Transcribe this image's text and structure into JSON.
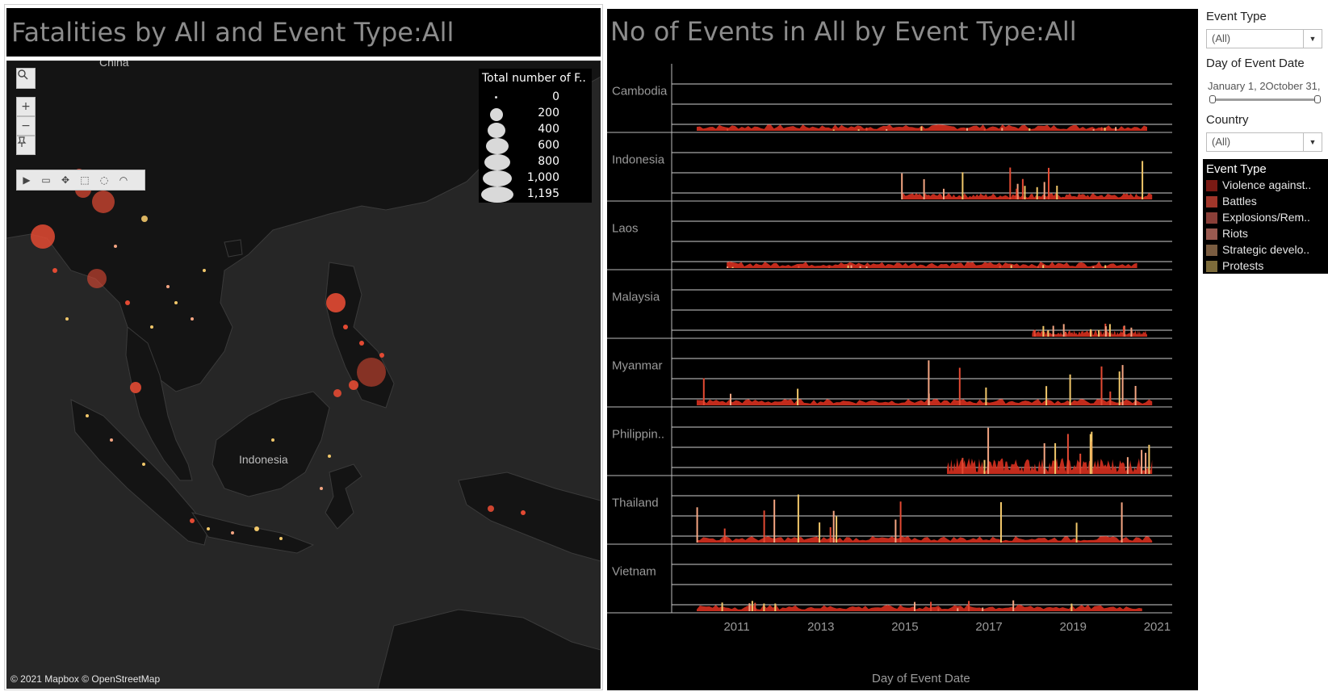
{
  "map_panel": {
    "title": "Fatalities by  All and Event Type:All",
    "labels": {
      "china": "China",
      "indonesia": "Indonesia"
    },
    "credit": "© 2021 Mapbox © OpenStreetMap",
    "legend": {
      "title": "Total number of F..",
      "items": [
        "0",
        "200",
        "400",
        "600",
        "800",
        "1,000",
        "1,195"
      ]
    },
    "tools": {
      "search": "search-icon",
      "zoom_in": "+",
      "zoom_out": "−",
      "pin": "pin-icon"
    }
  },
  "chart_panel": {
    "title": "No of Events in All by Event Type:All",
    "xlabel": "Day of Event Date",
    "x_ticks": [
      "2011",
      "2013",
      "2015",
      "2017",
      "2019",
      "2021"
    ],
    "rows": [
      "Cambodia",
      "Indonesia",
      "Laos",
      "Malaysia",
      "Myanmar",
      "Philippin..",
      "Thailand",
      "Vietnam"
    ]
  },
  "filters": {
    "event_type": {
      "label": "Event Type",
      "value": "(All)"
    },
    "date": {
      "label": "Day of Event Date",
      "range_text": "January 1, 2October 31,"
    },
    "country": {
      "label": "Country",
      "value": "(All)"
    }
  },
  "event_type_legend": {
    "title": "Event Type",
    "items": [
      {
        "label": "Violence against..",
        "color": "#7a1a14"
      },
      {
        "label": "Battles",
        "color": "#a1362a"
      },
      {
        "label": "Explosions/Rem..",
        "color": "#8a3f38"
      },
      {
        "label": "Riots",
        "color": "#9a5a50"
      },
      {
        "label": "Strategic develo..",
        "color": "#7a5c40"
      },
      {
        "label": "Protests",
        "color": "#7c6b3a"
      }
    ]
  }
}
